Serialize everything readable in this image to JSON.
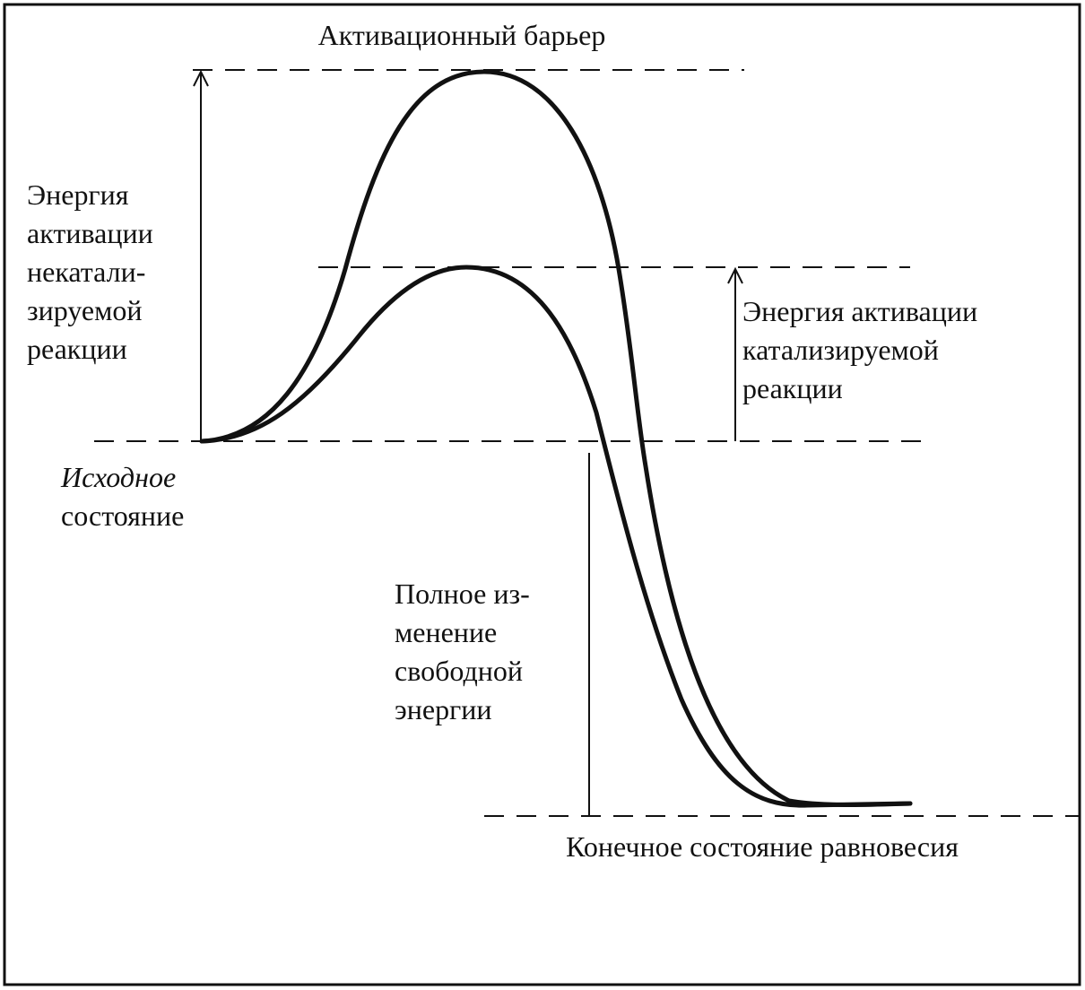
{
  "barrier_label": "Активационный барьер",
  "uncatalyzed_energy": {
    "lines": [
      "Энергия",
      "активации",
      "некатали-",
      "зируемой",
      "реакции"
    ]
  },
  "catalyzed_energy": {
    "lines": [
      "Энергия активации",
      "катализируемой",
      "реакции"
    ]
  },
  "initial_state": {
    "lines": [
      "Исходное",
      "состояние"
    ]
  },
  "free_energy_change": {
    "lines": [
      "Полное из-",
      "менение",
      "свободной",
      "энергии"
    ]
  },
  "final_state": "Конечное состояние равновесия"
}
